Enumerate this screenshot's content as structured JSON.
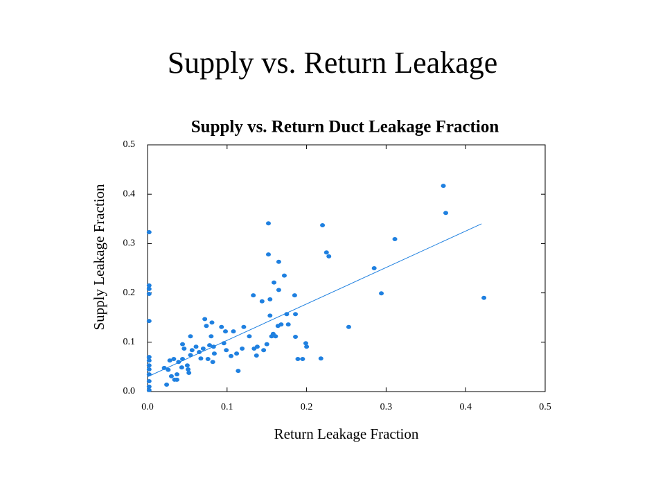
{
  "title": "Supply vs. Return Leakage",
  "chart_data": {
    "type": "scatter",
    "title": "Supply vs. Return Duct Leakage Fraction",
    "x_label": "Return Leakage Fraction",
    "y_label": "Supply Leakage Fraction",
    "color": "#1f80e0",
    "xlim": [
      0,
      0.5
    ],
    "ylim": [
      0,
      0.5
    ],
    "xticks": [
      {
        "value": 0,
        "label": "0.0"
      },
      0.1,
      0.2,
      0.3,
      0.4,
      0.5
    ],
    "yticks": [
      {
        "value": 0,
        "label": "0.0"
      },
      0.1,
      0.2,
      0.3,
      0.4,
      0.5
    ],
    "grid": false,
    "x": [
      0.002,
      0.002,
      0.002,
      0.002,
      0.002,
      0.002,
      0.002,
      0.002,
      0.002,
      0.002,
      0.002,
      0.002,
      0.002,
      0.021,
      0.024,
      0.026,
      0.028,
      0.03,
      0.033,
      0.034,
      0.037,
      0.037,
      0.039,
      0.043,
      0.044,
      0.046,
      0.044,
      0.05,
      0.051,
      0.052,
      0.054,
      0.054,
      0.056,
      0.061,
      0.065,
      0.067,
      0.07,
      0.072,
      0.074,
      0.076,
      0.078,
      0.08,
      0.081,
      0.082,
      0.083,
      0.084,
      0.093,
      0.096,
      0.098,
      0.099,
      0.105,
      0.108,
      0.112,
      0.114,
      0.119,
      0.121,
      0.128,
      0.133,
      0.134,
      0.137,
      0.138,
      0.144,
      0.146,
      0.15,
      0.152,
      0.152,
      0.154,
      0.154,
      0.156,
      0.158,
      0.159,
      0.161,
      0.164,
      0.165,
      0.165,
      0.168,
      0.172,
      0.175,
      0.177,
      0.185,
      0.186,
      0.186,
      0.189,
      0.195,
      0.199,
      0.2,
      0.218,
      0.22,
      0.225,
      0.228,
      0.253,
      0.285,
      0.294,
      0.311,
      0.372,
      0.375,
      0.423
    ],
    "values": [
      0.323,
      0.215,
      0.208,
      0.198,
      0.143,
      0.07,
      0.063,
      0.053,
      0.045,
      0.035,
      0.021,
      0.01,
      0.003,
      0.048,
      0.014,
      0.044,
      0.063,
      0.031,
      0.066,
      0.024,
      0.024,
      0.035,
      0.06,
      0.049,
      0.096,
      0.087,
      0.066,
      0.053,
      0.045,
      0.038,
      0.074,
      0.112,
      0.084,
      0.091,
      0.08,
      0.067,
      0.087,
      0.147,
      0.133,
      0.066,
      0.094,
      0.112,
      0.14,
      0.06,
      0.091,
      0.077,
      0.131,
      0.098,
      0.122,
      0.084,
      0.072,
      0.122,
      0.077,
      0.042,
      0.087,
      0.131,
      0.112,
      0.195,
      0.087,
      0.073,
      0.091,
      0.183,
      0.084,
      0.096,
      0.341,
      0.278,
      0.187,
      0.154,
      0.112,
      0.117,
      0.221,
      0.112,
      0.133,
      0.206,
      0.263,
      0.136,
      0.235,
      0.157,
      0.136,
      0.195,
      0.157,
      0.111,
      0.066,
      0.066,
      0.098,
      0.091,
      0.067,
      0.337,
      0.282,
      0.274,
      0.131,
      0.25,
      0.199,
      0.309,
      0.417,
      0.362,
      0.19
    ],
    "trendline": {
      "x": [
        0,
        0.42
      ],
      "y": [
        0.03,
        0.34
      ]
    }
  }
}
